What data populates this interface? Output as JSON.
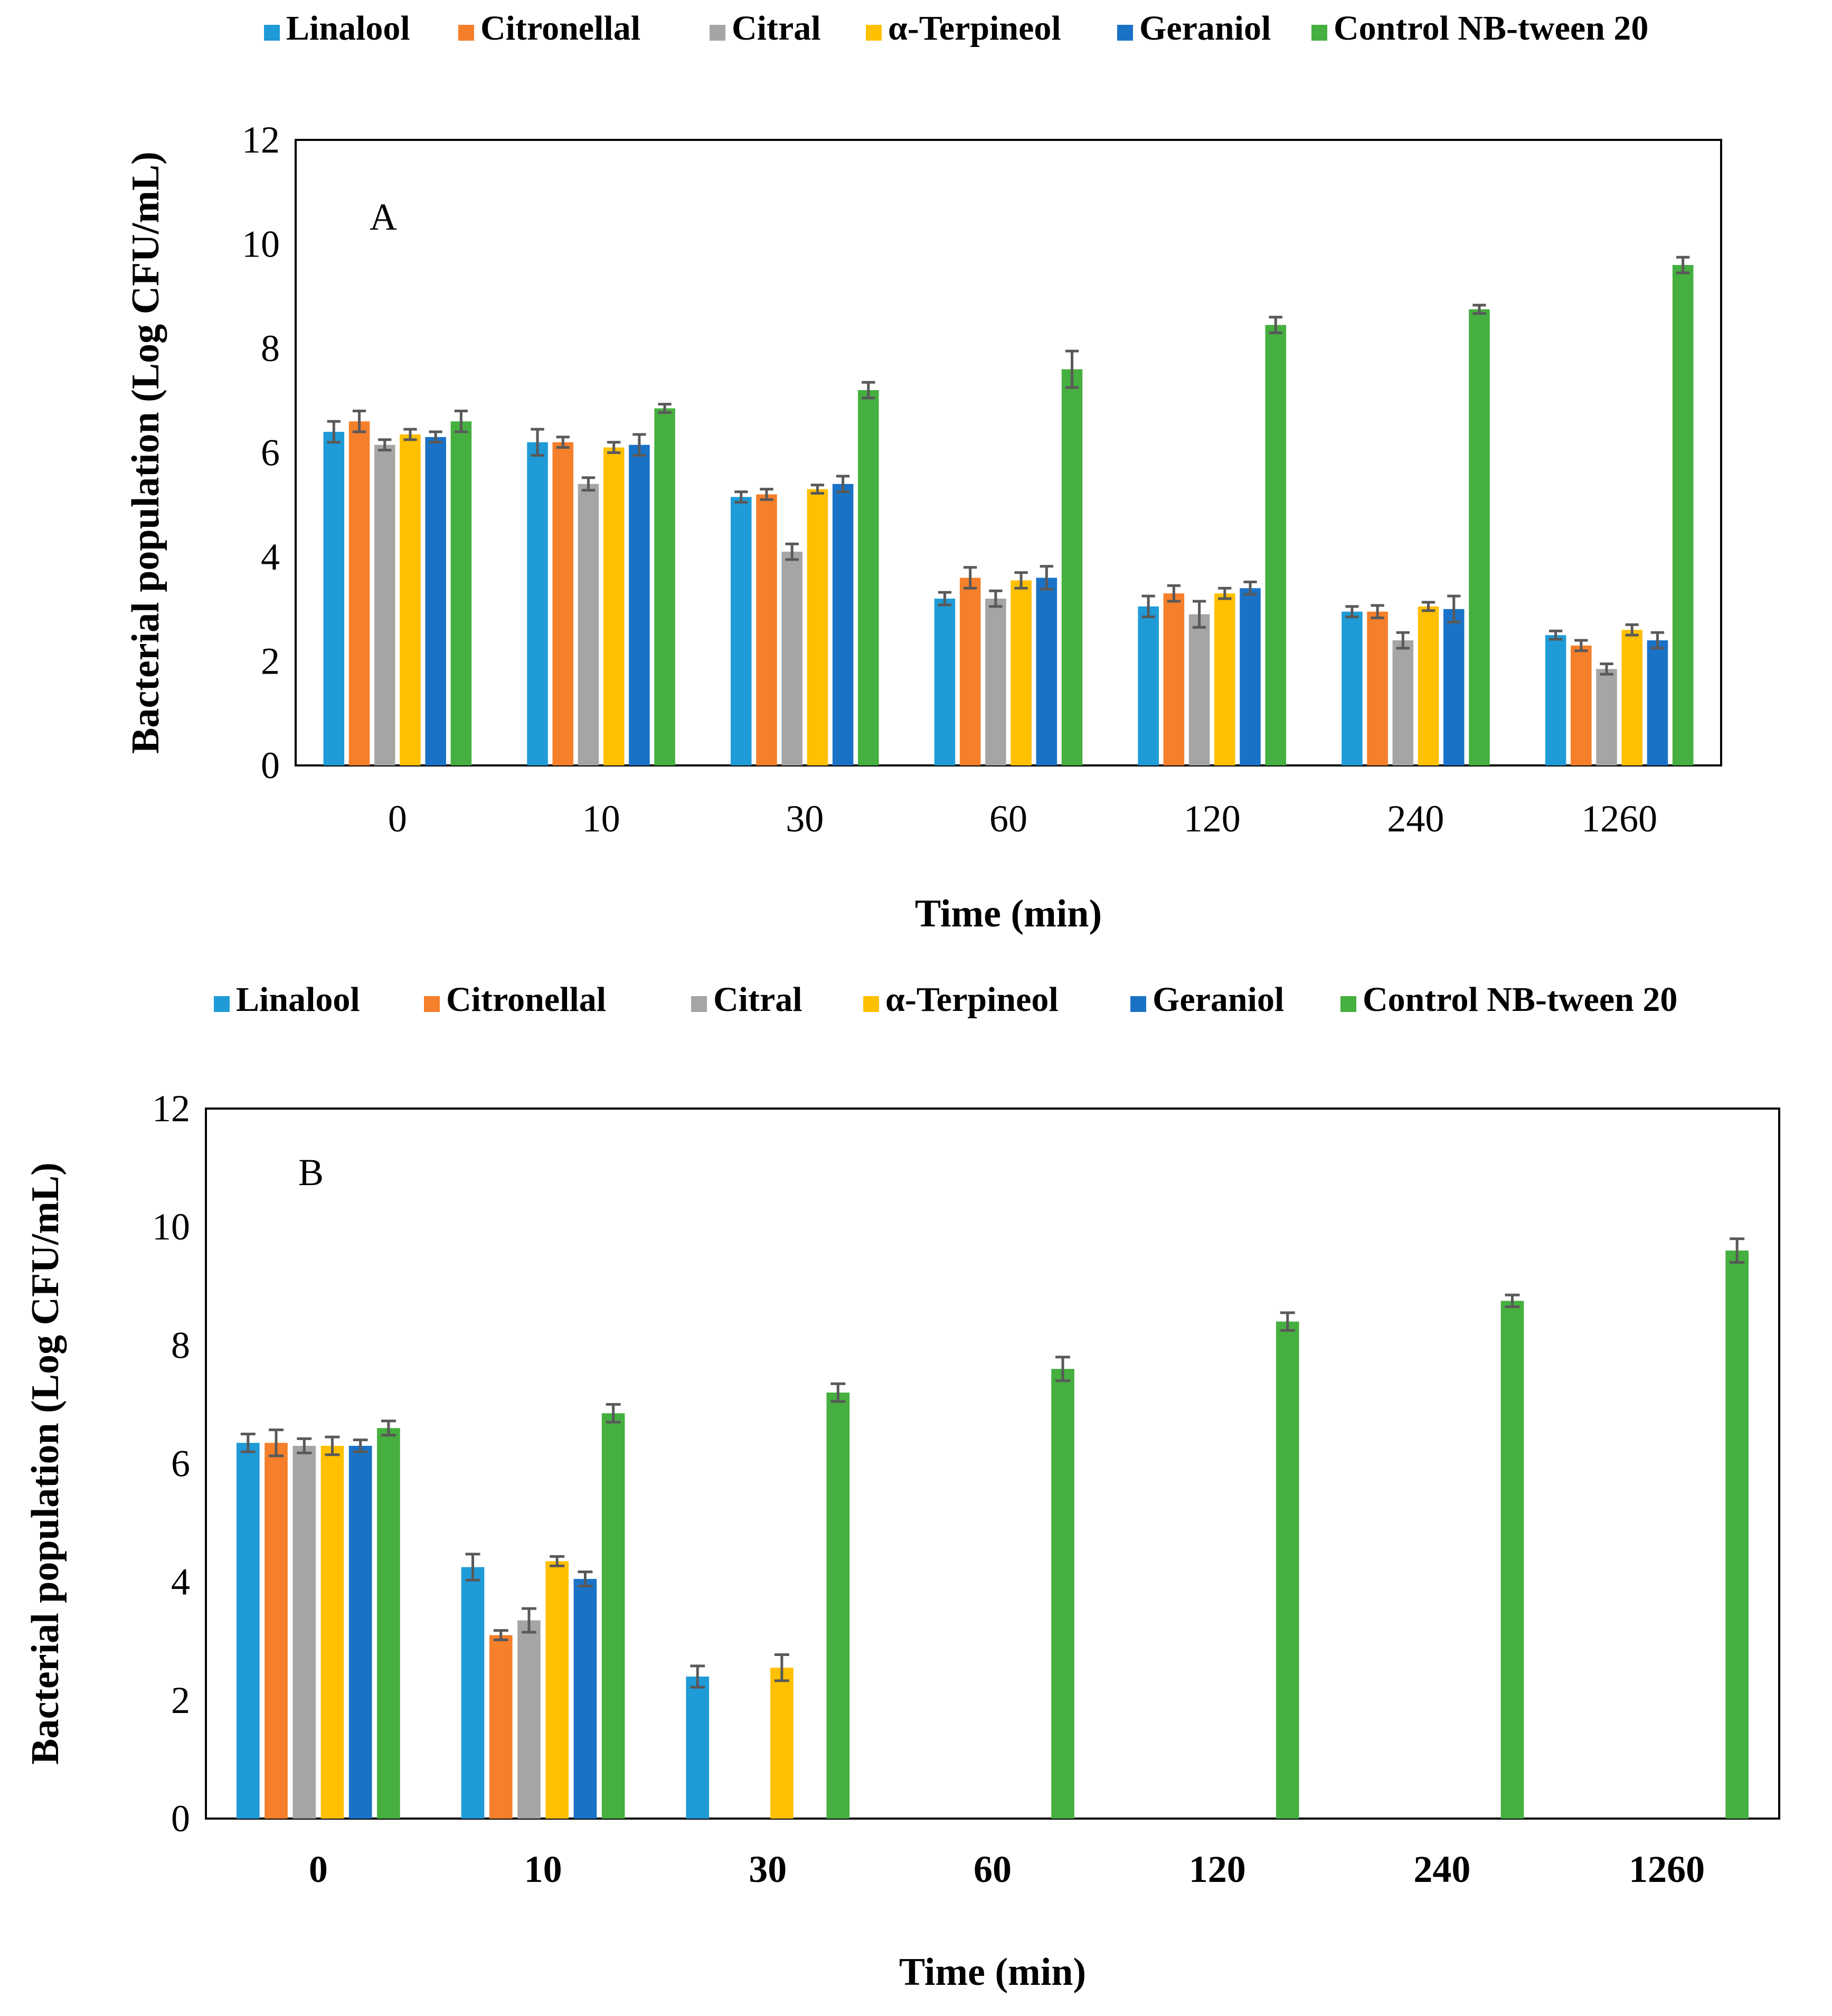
{
  "chart_data": [
    {
      "type": "bar",
      "panel_label": "A",
      "categories": [
        "0",
        "10",
        "30",
        "60",
        "120",
        "240",
        "1260"
      ],
      "xlabel": "Time (min)",
      "ylabel": "Bacterial population (Log CFU/mL)",
      "ylim": [
        0,
        12
      ],
      "yticks": [
        "0",
        "2",
        "4",
        "6",
        "8",
        "10",
        "12"
      ],
      "legend_position": "top",
      "series": [
        {
          "name": "Linalool",
          "color": "#1F9BD7",
          "values": [
            6.4,
            6.2,
            5.15,
            3.2,
            3.05,
            2.95,
            2.5
          ],
          "errors": [
            0.2,
            0.25,
            0.1,
            0.12,
            0.2,
            0.1,
            0.08
          ]
        },
        {
          "name": "Citronellal",
          "color": "#F57F2A",
          "values": [
            6.6,
            6.2,
            5.2,
            3.6,
            3.3,
            2.95,
            2.3
          ],
          "errors": [
            0.2,
            0.1,
            0.1,
            0.2,
            0.15,
            0.12,
            0.1
          ]
        },
        {
          "name": "Citral",
          "color": "#A5A5A5",
          "values": [
            6.15,
            5.4,
            4.1,
            3.2,
            2.9,
            2.4,
            1.85
          ],
          "errors": [
            0.1,
            0.12,
            0.15,
            0.15,
            0.25,
            0.15,
            0.1
          ]
        },
        {
          "name": "α-Terpineol",
          "color": "#FFC000",
          "values": [
            6.35,
            6.1,
            5.3,
            3.55,
            3.3,
            3.05,
            2.6
          ],
          "errors": [
            0.1,
            0.1,
            0.08,
            0.15,
            0.1,
            0.08,
            0.1
          ]
        },
        {
          "name": "Geraniol",
          "color": "#1A72C7",
          "values": [
            6.3,
            6.15,
            5.4,
            3.6,
            3.4,
            3.0,
            2.4
          ],
          "errors": [
            0.1,
            0.2,
            0.15,
            0.22,
            0.12,
            0.25,
            0.15
          ]
        },
        {
          "name": "Control NB-tween 20",
          "color": "#45AF3F",
          "values": [
            6.6,
            6.85,
            7.2,
            7.6,
            8.45,
            8.75,
            9.6
          ],
          "errors": [
            0.2,
            0.08,
            0.15,
            0.35,
            0.15,
            0.08,
            0.15
          ]
        }
      ]
    },
    {
      "type": "bar",
      "panel_label": "B",
      "categories": [
        "0",
        "10",
        "30",
        "60",
        "120",
        "240",
        "1260"
      ],
      "xlabel": "Time (min)",
      "ylabel": "Bacterial population (Log CFU/mL)",
      "ylim": [
        0,
        12
      ],
      "yticks": [
        "0",
        "2",
        "4",
        "6",
        "8",
        "10",
        "12"
      ],
      "legend_position": "top",
      "series": [
        {
          "name": "Linalool",
          "color": "#1F9BD7",
          "values": [
            6.35,
            4.25,
            2.4,
            0,
            0,
            0,
            0
          ],
          "errors": [
            0.15,
            0.22,
            0.18,
            0,
            0,
            0,
            0
          ]
        },
        {
          "name": "Citronellal",
          "color": "#F57F2A",
          "values": [
            6.35,
            3.1,
            0,
            0,
            0,
            0,
            0
          ],
          "errors": [
            0.22,
            0.08,
            0,
            0,
            0,
            0,
            0
          ]
        },
        {
          "name": "Citral",
          "color": "#A5A5A5",
          "values": [
            6.3,
            3.35,
            0,
            0,
            0,
            0,
            0
          ],
          "errors": [
            0.12,
            0.2,
            0,
            0,
            0,
            0,
            0
          ]
        },
        {
          "name": "α-Terpineol",
          "color": "#FFC000",
          "values": [
            6.3,
            4.35,
            2.55,
            0,
            0,
            0,
            0
          ],
          "errors": [
            0.15,
            0.08,
            0.22,
            0,
            0,
            0,
            0
          ]
        },
        {
          "name": "Geraniol",
          "color": "#1A72C7",
          "values": [
            6.3,
            4.05,
            0,
            0,
            0,
            0,
            0
          ],
          "errors": [
            0.1,
            0.12,
            0,
            0,
            0,
            0,
            0
          ]
        },
        {
          "name": "Control NB-tween 20",
          "color": "#45AF3F",
          "values": [
            6.6,
            6.85,
            7.2,
            7.6,
            8.4,
            8.75,
            9.6
          ],
          "errors": [
            0.12,
            0.15,
            0.15,
            0.2,
            0.15,
            0.1,
            0.2
          ]
        }
      ]
    }
  ]
}
